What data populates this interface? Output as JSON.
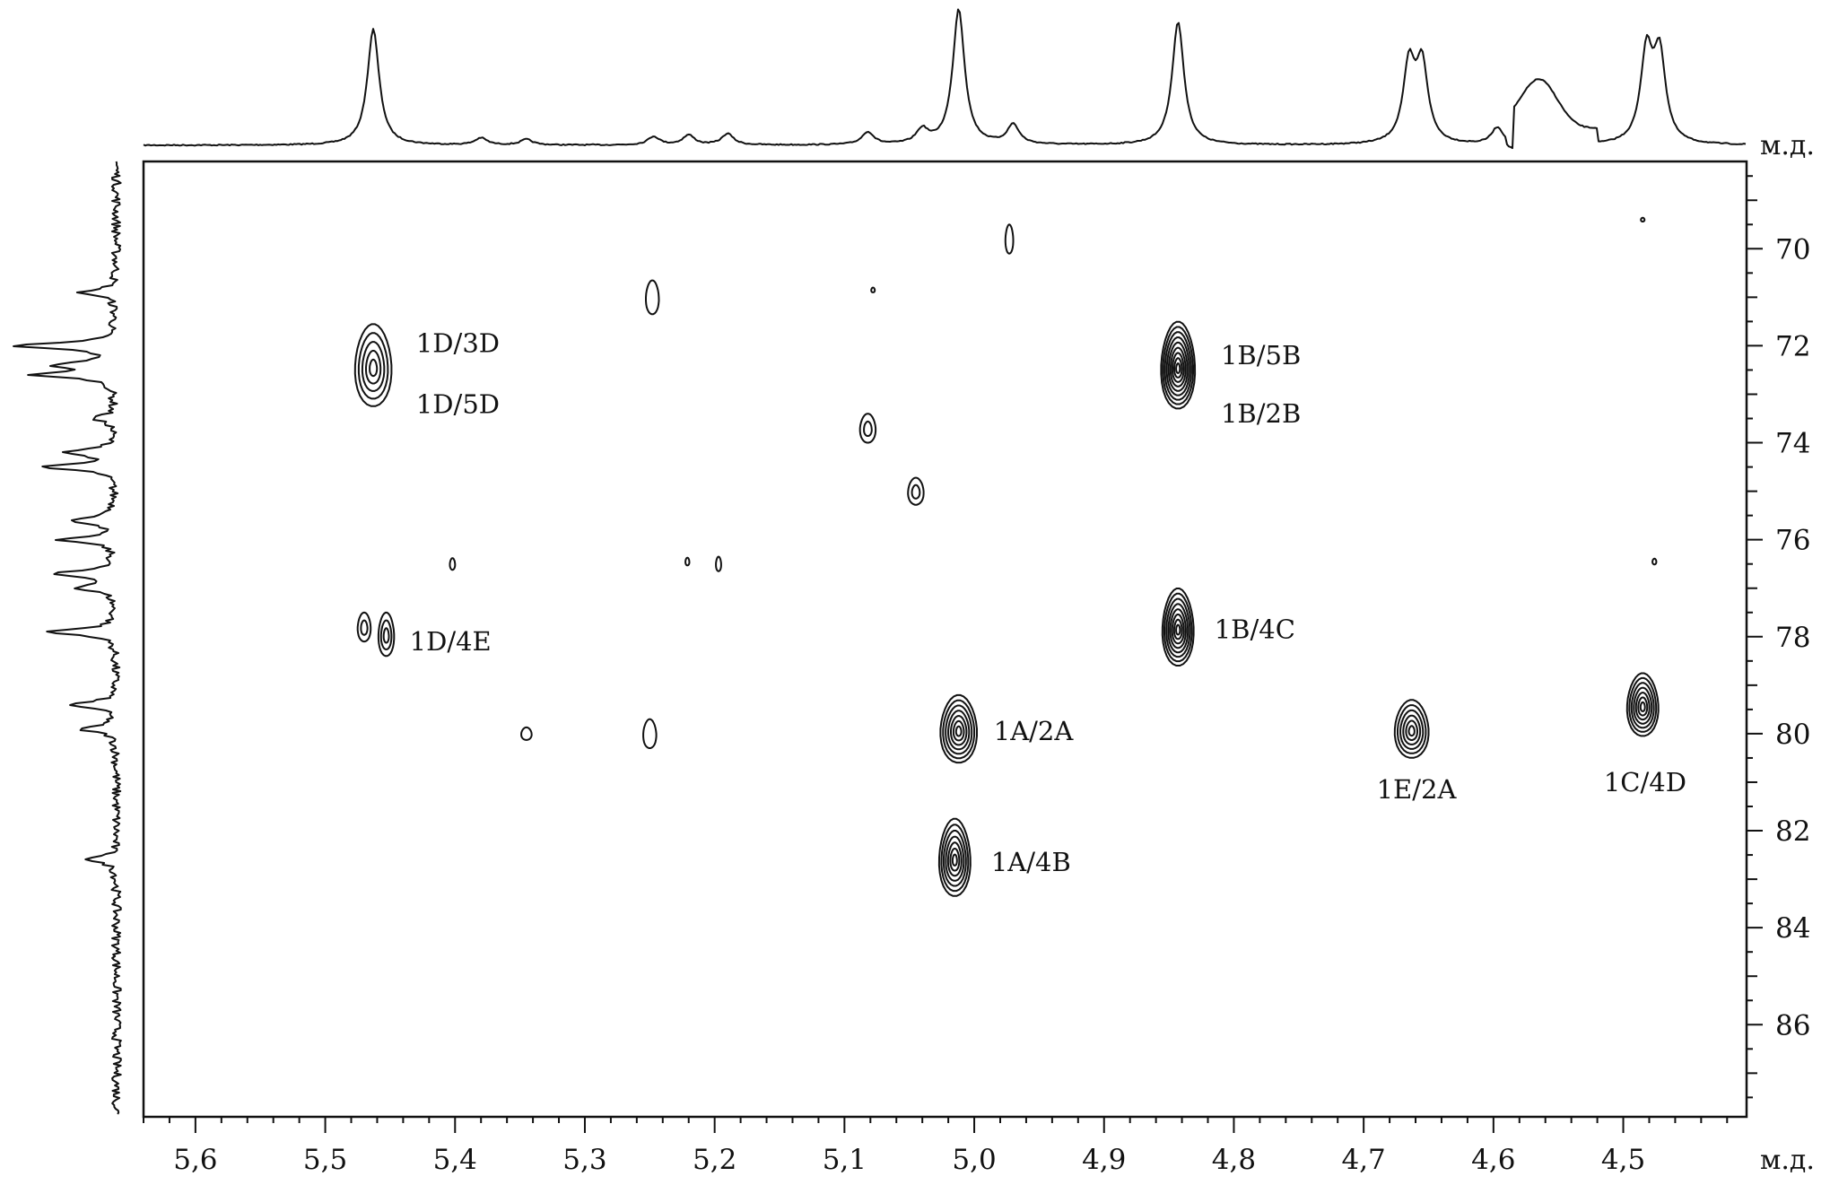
{
  "chart_data": {
    "type": "heatmap",
    "title": "",
    "x_axis": {
      "unit_label": "м.д.",
      "min": 4.405,
      "max": 5.64,
      "reversed": true,
      "ticks": [
        "5,6",
        "5,5",
        "5,4",
        "5,3",
        "5,2",
        "5,1",
        "5,0",
        "4,9",
        "4,8",
        "4,7",
        "4,6",
        "4,5"
      ],
      "tick_values": [
        5.6,
        5.5,
        5.4,
        5.3,
        5.2,
        5.1,
        5.0,
        4.9,
        4.8,
        4.7,
        4.6,
        4.5
      ]
    },
    "y_axis": {
      "unit_label": "м.д.",
      "min": 68.2,
      "max": 87.9,
      "position": "right",
      "ticks": [
        "70",
        "72",
        "74",
        "76",
        "78",
        "80",
        "82",
        "84",
        "86"
      ],
      "tick_values": [
        70,
        72,
        74,
        76,
        78,
        80,
        82,
        84,
        86
      ]
    },
    "top_projection_peaks": [
      {
        "x": 5.463,
        "h": 0.83
      },
      {
        "x": 5.38,
        "h": 0.05
      },
      {
        "x": 5.345,
        "h": 0.04
      },
      {
        "x": 5.247,
        "h": 0.06
      },
      {
        "x": 5.22,
        "h": 0.07
      },
      {
        "x": 5.19,
        "h": 0.08
      },
      {
        "x": 5.082,
        "h": 0.09
      },
      {
        "x": 5.04,
        "h": 0.1
      },
      {
        "x": 5.012,
        "h": 0.97
      },
      {
        "x": 4.97,
        "h": 0.14
      },
      {
        "x": 4.843,
        "h": 0.88
      },
      {
        "x": 4.665,
        "h": 0.55
      },
      {
        "x": 4.655,
        "h": 0.55
      },
      {
        "x": 4.597,
        "h": 0.12
      },
      {
        "x": 4.482,
        "h": 0.64
      },
      {
        "x": 4.472,
        "h": 0.62
      }
    ],
    "left_projection_peaks": [
      {
        "y": 70.9,
        "h": 0.33
      },
      {
        "y": 72.0,
        "h": 0.95
      },
      {
        "y": 72.4,
        "h": 0.5
      },
      {
        "y": 72.6,
        "h": 0.72
      },
      {
        "y": 73.5,
        "h": 0.22
      },
      {
        "y": 74.2,
        "h": 0.45
      },
      {
        "y": 74.5,
        "h": 0.68
      },
      {
        "y": 75.6,
        "h": 0.42
      },
      {
        "y": 76.0,
        "h": 0.52
      },
      {
        "y": 76.7,
        "h": 0.6
      },
      {
        "y": 77.0,
        "h": 0.34
      },
      {
        "y": 77.9,
        "h": 0.65
      },
      {
        "y": 79.4,
        "h": 0.44
      },
      {
        "y": 79.9,
        "h": 0.35
      },
      {
        "y": 82.6,
        "h": 0.28
      }
    ],
    "cross_peaks": [
      {
        "x": 5.463,
        "y": 72.4,
        "sx": 0.014,
        "sy": 0.85,
        "levels": 5,
        "labels": [
          "1D/3D",
          "1D/5D"
        ],
        "label_x": 5.43,
        "label_y": [
          71.95,
          73.2
        ]
      },
      {
        "x": 4.843,
        "y": 72.4,
        "sx": 0.013,
        "sy": 0.9,
        "levels": 9,
        "labels": [
          "1B/5B",
          "1B/2B"
        ],
        "label_x": 4.81,
        "label_y": [
          72.2,
          73.4
        ]
      },
      {
        "x": 5.47,
        "y": 77.8,
        "sx": 0.005,
        "sy": 0.3,
        "levels": 2,
        "labels": [],
        "label_x": 0,
        "label_y": []
      },
      {
        "x": 5.453,
        "y": 77.95,
        "sx": 0.006,
        "sy": 0.45,
        "levels": 3,
        "labels": [
          "1D/4E"
        ],
        "label_x": 5.435,
        "label_y": [
          78.1
        ]
      },
      {
        "x": 4.843,
        "y": 77.8,
        "sx": 0.012,
        "sy": 0.8,
        "levels": 8,
        "labels": [
          "1B/4C"
        ],
        "label_x": 4.815,
        "label_y": [
          77.85
        ]
      },
      {
        "x": 5.012,
        "y": 79.9,
        "sx": 0.014,
        "sy": 0.7,
        "levels": 7,
        "labels": [
          "1A/2A"
        ],
        "label_x": 4.985,
        "label_y": [
          79.95
        ]
      },
      {
        "x": 4.663,
        "y": 79.9,
        "sx": 0.013,
        "sy": 0.6,
        "levels": 6,
        "labels": [
          "1E/2A"
        ],
        "label_x": 4.69,
        "label_y": [
          81.15
        ]
      },
      {
        "x": 4.485,
        "y": 79.4,
        "sx": 0.012,
        "sy": 0.65,
        "levels": 7,
        "labels": [
          "1C/4D"
        ],
        "label_x": 4.515,
        "label_y": [
          81.0
        ]
      },
      {
        "x": 5.015,
        "y": 82.55,
        "sx": 0.012,
        "sy": 0.8,
        "levels": 7,
        "labels": [
          "1A/4B"
        ],
        "label_x": 4.987,
        "label_y": [
          82.65
        ]
      },
      {
        "x": 4.973,
        "y": 69.8,
        "sx": 0.003,
        "sy": 0.3,
        "levels": 1,
        "labels": [],
        "label_x": 0,
        "label_y": []
      },
      {
        "x": 5.248,
        "y": 71.0,
        "sx": 0.005,
        "sy": 0.35,
        "levels": 1,
        "labels": [],
        "label_x": 0,
        "label_y": []
      },
      {
        "x": 5.078,
        "y": 70.85,
        "sx": 0.001,
        "sy": 0.05,
        "levels": 1,
        "labels": [],
        "label_x": 0,
        "label_y": []
      },
      {
        "x": 5.082,
        "y": 73.7,
        "sx": 0.006,
        "sy": 0.3,
        "levels": 2,
        "labels": [],
        "label_x": 0,
        "label_y": []
      },
      {
        "x": 5.045,
        "y": 75.0,
        "sx": 0.006,
        "sy": 0.28,
        "levels": 2,
        "labels": [],
        "label_x": 0,
        "label_y": []
      },
      {
        "x": 5.402,
        "y": 76.5,
        "sx": 0.002,
        "sy": 0.12,
        "levels": 1,
        "labels": [],
        "label_x": 0,
        "label_y": []
      },
      {
        "x": 5.221,
        "y": 76.45,
        "sx": 0.0015,
        "sy": 0.08,
        "levels": 1,
        "labels": [],
        "label_x": 0,
        "label_y": []
      },
      {
        "x": 5.197,
        "y": 76.5,
        "sx": 0.002,
        "sy": 0.15,
        "levels": 1,
        "labels": [],
        "label_x": 0,
        "label_y": []
      },
      {
        "x": 4.476,
        "y": 76.45,
        "sx": 0.0015,
        "sy": 0.06,
        "levels": 1,
        "labels": [],
        "label_x": 0,
        "label_y": []
      },
      {
        "x": 5.345,
        "y": 80.0,
        "sx": 0.004,
        "sy": 0.13,
        "levels": 1,
        "labels": [],
        "label_x": 0,
        "label_y": []
      },
      {
        "x": 5.25,
        "y": 80.0,
        "sx": 0.005,
        "sy": 0.3,
        "levels": 1,
        "labels": [],
        "label_x": 0,
        "label_y": []
      },
      {
        "x": 4.485,
        "y": 69.4,
        "sx": 0.001,
        "sy": 0.04,
        "levels": 1,
        "labels": [],
        "label_x": 0,
        "label_y": []
      }
    ]
  }
}
